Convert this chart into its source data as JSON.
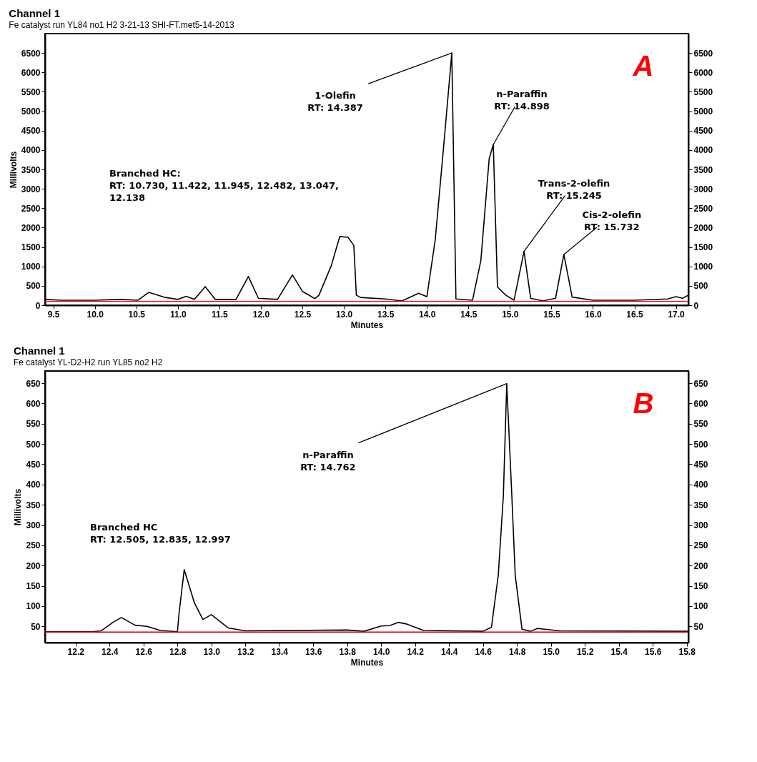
{
  "chart_data": [
    {
      "type": "line",
      "title": "Channel 1",
      "subtitle": "Fe catalyst run YL84 no1 H2 3-21-13 SHI-FT.met5-14-2013",
      "xlabel": "Minutes",
      "ylabel": "Millivolts",
      "series": [
        {
          "color": "#000000",
          "x": [
            9.4,
            9.6,
            10.0,
            10.3,
            10.52,
            10.65,
            10.85,
            11.0,
            11.1,
            11.2,
            11.33,
            11.45,
            11.7,
            11.85,
            11.97,
            12.2,
            12.38,
            12.5,
            12.65,
            12.7,
            12.85,
            12.95,
            13.05,
            13.12,
            13.15,
            13.2,
            13.5,
            13.7,
            13.9,
            14.0,
            14.1,
            14.2,
            14.3,
            14.35,
            14.55,
            14.65,
            14.75,
            14.8,
            14.85,
            14.95,
            15.05,
            15.17,
            15.25,
            15.4,
            15.55,
            15.65,
            15.75,
            16.0,
            16.5,
            16.9,
            17.0,
            17.08,
            17.15
          ],
          "values": [
            150,
            130,
            130,
            150,
            130,
            330,
            200,
            150,
            230,
            150,
            480,
            150,
            150,
            740,
            180,
            150,
            780,
            360,
            170,
            260,
            1030,
            1770,
            1750,
            1540,
            260,
            200,
            160,
            110,
            310,
            220,
            1680,
            4040,
            6500,
            160,
            130,
            1150,
            3770,
            4140,
            470,
            260,
            130,
            1390,
            180,
            110,
            180,
            1310,
            210,
            130,
            130,
            160,
            220,
            180,
            260
          ]
        }
      ],
      "xlim": [
        9.4,
        17.15
      ],
      "ylim": [
        0,
        7000
      ],
      "y2lim": [
        0,
        7000
      ],
      "xticks": [
        9.5,
        {
          "value": 10,
          "label": "10.0"
        },
        10.5,
        {
          "value": 11,
          "label": "11.0"
        },
        11.5,
        {
          "value": 12,
          "label": "12.0"
        },
        12.5,
        {
          "value": 13,
          "label": "13.0"
        },
        13.5,
        {
          "value": 14,
          "label": "14.0"
        },
        14.5,
        {
          "value": 15,
          "label": "15.0"
        },
        15.5,
        {
          "value": 16,
          "label": "16.0"
        },
        16.5,
        {
          "value": 17,
          "label": "17.0"
        }
      ],
      "yticks": [
        0,
        500,
        1000,
        1500,
        2000,
        2500,
        3000,
        3500,
        4000,
        4500,
        5000,
        5500,
        6000,
        6500
      ],
      "y2ticks": [
        0,
        500,
        1000,
        1500,
        2000,
        2500,
        3000,
        3500,
        4000,
        4500,
        5000,
        5500,
        6000,
        6500
      ],
      "ref_lines": [
        {
          "axis": "y",
          "value": 100,
          "color": "#ff0000"
        }
      ],
      "annotations": [
        "A",
        "Branched HC:\nRT: 10.730, 11.422, 11.945, 12.482, 13.047,\n12.138",
        {
          "text": "1-Olefin\nRT: 14.387",
          "x": 14.3,
          "y": 6500
        },
        {
          "text": "n-Paraffin\nRT: 14.898",
          "x": 14.8,
          "y": 4140
        },
        {
          "text": "Trans-2-olefin\nRT: 15.245",
          "x": 15.17,
          "y": 1390
        },
        {
          "text": "Cis-2-olefin\nRT: 15.732",
          "x": 15.65,
          "y": 1310
        }
      ]
    },
    {
      "type": "line",
      "title": "Channel 1",
      "subtitle": "Fe catalyst YL-D2-H2 run YL85 no2  H2",
      "xlabel": "Minutes",
      "ylabel": "Millivolts",
      "series": [
        {
          "color": "#000000",
          "x": [
            12.02,
            12.3,
            12.35,
            12.42,
            12.47,
            12.55,
            12.62,
            12.7,
            12.8,
            12.81,
            12.84,
            12.9,
            12.95,
            13.0,
            13.1,
            13.2,
            13.8,
            13.9,
            14.0,
            14.05,
            14.1,
            14.15,
            14.25,
            14.6,
            14.65,
            14.69,
            14.72,
            14.74,
            14.77,
            14.79,
            14.83,
            14.88,
            14.92,
            15.05,
            15.81
          ],
          "values": [
            37,
            37,
            39,
            60,
            72,
            53,
            50,
            40,
            37,
            84,
            190,
            108,
            67,
            79,
            46,
            39,
            41,
            38,
            51,
            52,
            60,
            56,
            40,
            38,
            48,
            176,
            372,
            649,
            372,
            176,
            43,
            38,
            45,
            39,
            38
          ]
        }
      ],
      "xlim": [
        12.02,
        15.81
      ],
      "ylim": [
        10,
        680
      ],
      "y2lim": [
        10,
        680
      ],
      "xticks": [
        12.2,
        12.4,
        12.6,
        12.8,
        {
          "value": 13,
          "label": "13.0"
        },
        13.2,
        13.4,
        13.6,
        13.8,
        {
          "value": 14,
          "label": "14.0"
        },
        14.2,
        14.4,
        14.6,
        14.8,
        {
          "value": 15,
          "label": "15.0"
        },
        15.2,
        15.4,
        15.6,
        15.8
      ],
      "yticks": [
        50,
        100,
        150,
        200,
        250,
        300,
        350,
        400,
        450,
        500,
        550,
        600,
        650
      ],
      "y2ticks": [
        50,
        100,
        150,
        200,
        250,
        300,
        350,
        400,
        450,
        500,
        550,
        600,
        650
      ],
      "ref_lines": [
        {
          "axis": "y",
          "value": 36,
          "color": "#cc0000"
        }
      ],
      "annotations": [
        "B",
        "Branched HC\nRT: 12.505, 12.835, 12.997",
        {
          "text": "n-Paraffin\nRT: 14.762",
          "x": 14.74,
          "y": 649
        }
      ]
    }
  ]
}
